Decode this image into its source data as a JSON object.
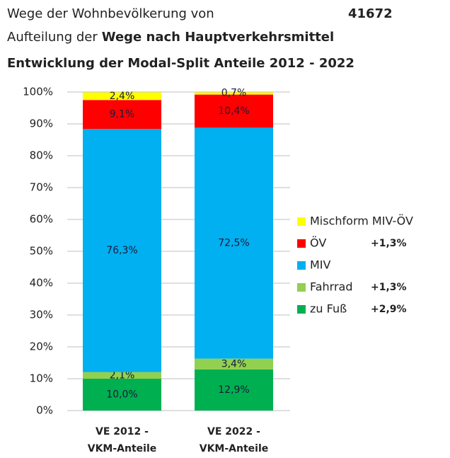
{
  "chart_data": {
    "type": "stacked_bar",
    "title": "Wege der Wohnbevölkerung von",
    "title_number": "41672",
    "subtitle": [
      "Aufteilung der",
      "Wege nach Hauptverkehrsmittel"
    ],
    "subtitle2": "Entwicklung der Modal-Split Anteile 2012 - 2022",
    "categories": [
      [
        "VE 2012 -",
        "VKM-Anteile"
      ],
      [
        "VE 2022 -",
        "VKM-Anteile"
      ]
    ],
    "series": [
      {
        "name": "zu Fuß",
        "color": "#00b050",
        "values": [
          10.0,
          12.9
        ],
        "value_labels": [
          "10,0%",
          "12,9%"
        ],
        "note": "+2,9%"
      },
      {
        "name": "Fahrrad",
        "color": "#92d050",
        "values": [
          2.1,
          3.4
        ],
        "value_labels": [
          "2,1%",
          "3,4%"
        ],
        "note": "+1,3%"
      },
      {
        "name": "MIV",
        "color": "#00b0f0",
        "values": [
          76.3,
          72.5
        ],
        "value_labels": [
          "76,3%",
          "72,5%"
        ]
      },
      {
        "name": "ÖV",
        "color": "#ff0000",
        "values": [
          9.1,
          10.4
        ],
        "value_labels": [
          "9,1%",
          "10,4%"
        ],
        "note": "+1,3%"
      },
      {
        "name": "Mischform MIV-ÖV",
        "color": "#ffff00",
        "values": [
          2.4,
          0.7
        ],
        "value_labels": [
          "2,4%",
          "0,7%"
        ]
      }
    ],
    "ylim": [
      0,
      100
    ],
    "yticks": [
      {
        "value": 0,
        "label": "0%"
      },
      {
        "value": 10,
        "label": "10%"
      },
      {
        "value": 20,
        "label": "20%"
      },
      {
        "value": 30,
        "label": "30%"
      },
      {
        "value": 40,
        "label": "40%"
      },
      {
        "value": 50,
        "label": "50%"
      },
      {
        "value": 60,
        "label": "60%"
      },
      {
        "value": 70,
        "label": "70%"
      },
      {
        "value": 80,
        "label": "80%"
      },
      {
        "value": 90,
        "label": "90%"
      },
      {
        "value": 100,
        "label": "100%"
      }
    ],
    "grid": true
  }
}
